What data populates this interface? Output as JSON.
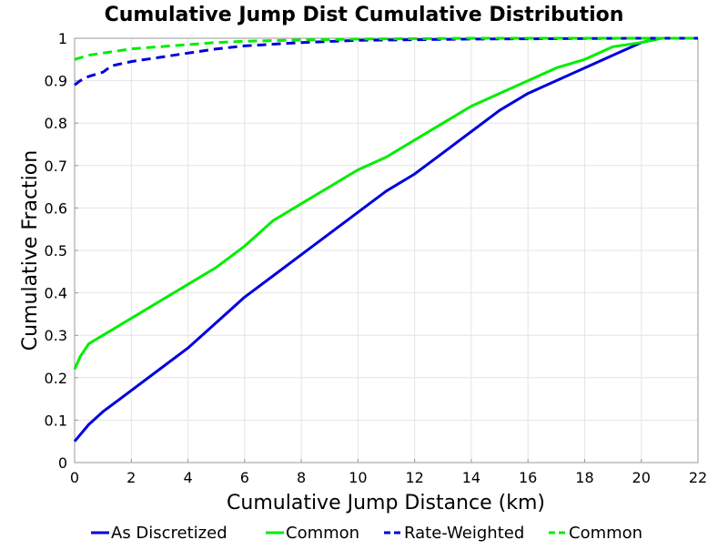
{
  "chart_data": {
    "type": "line",
    "title": "Cumulative Jump Dist Cumulative Distribution",
    "xlabel": "Cumulative Jump Distance (km)",
    "ylabel": "Cumulative Fraction",
    "xlim": [
      0,
      22
    ],
    "ylim": [
      0,
      1
    ],
    "xticks": [
      0,
      2,
      4,
      6,
      8,
      10,
      12,
      14,
      16,
      18,
      20,
      22
    ],
    "yticks": [
      0,
      0.1,
      0.2,
      0.3,
      0.4,
      0.5,
      0.6,
      0.7,
      0.8,
      0.9,
      1
    ],
    "grid": true,
    "legend_position": "bottom",
    "series": [
      {
        "name": "As Discretized",
        "color": "#0000dd",
        "dash": "solid",
        "x": [
          0,
          0.5,
          1,
          2,
          3,
          4,
          5,
          6,
          7,
          8,
          9,
          10,
          11,
          12,
          13,
          14,
          15,
          16,
          17,
          18,
          19,
          20,
          20.7,
          22
        ],
        "y": [
          0.05,
          0.09,
          0.12,
          0.17,
          0.22,
          0.27,
          0.33,
          0.39,
          0.44,
          0.49,
          0.54,
          0.59,
          0.64,
          0.68,
          0.73,
          0.78,
          0.83,
          0.87,
          0.9,
          0.93,
          0.96,
          0.99,
          1.0,
          1.0
        ]
      },
      {
        "name": "Common",
        "color": "#00ee00",
        "dash": "solid",
        "x": [
          0,
          0.2,
          0.5,
          1,
          2,
          3,
          4,
          5,
          6,
          7,
          8,
          9,
          10,
          11,
          12,
          13,
          14,
          15,
          16,
          17,
          18,
          19,
          20,
          20.7,
          22
        ],
        "y": [
          0.22,
          0.25,
          0.28,
          0.3,
          0.34,
          0.38,
          0.42,
          0.46,
          0.51,
          0.57,
          0.61,
          0.65,
          0.69,
          0.72,
          0.76,
          0.8,
          0.84,
          0.87,
          0.9,
          0.93,
          0.95,
          0.98,
          0.99,
          1.0,
          1.0
        ]
      },
      {
        "name": "Rate-Weighted",
        "color": "#0000dd",
        "dash": "dashed",
        "x": [
          0,
          0.2,
          0.5,
          1,
          1.3,
          2,
          3,
          4,
          5,
          6,
          8,
          10,
          14,
          20,
          22
        ],
        "y": [
          0.89,
          0.9,
          0.91,
          0.92,
          0.935,
          0.945,
          0.955,
          0.965,
          0.975,
          0.982,
          0.99,
          0.995,
          0.998,
          1.0,
          1.0
        ]
      },
      {
        "name": "Common",
        "color": "#00ee00",
        "dash": "dashed",
        "x": [
          0,
          0.5,
          1,
          2,
          3,
          4,
          5,
          6,
          8,
          10,
          14,
          20,
          22
        ],
        "y": [
          0.95,
          0.96,
          0.965,
          0.975,
          0.98,
          0.985,
          0.99,
          0.993,
          0.996,
          0.998,
          1.0,
          1.0,
          1.0
        ]
      }
    ]
  }
}
